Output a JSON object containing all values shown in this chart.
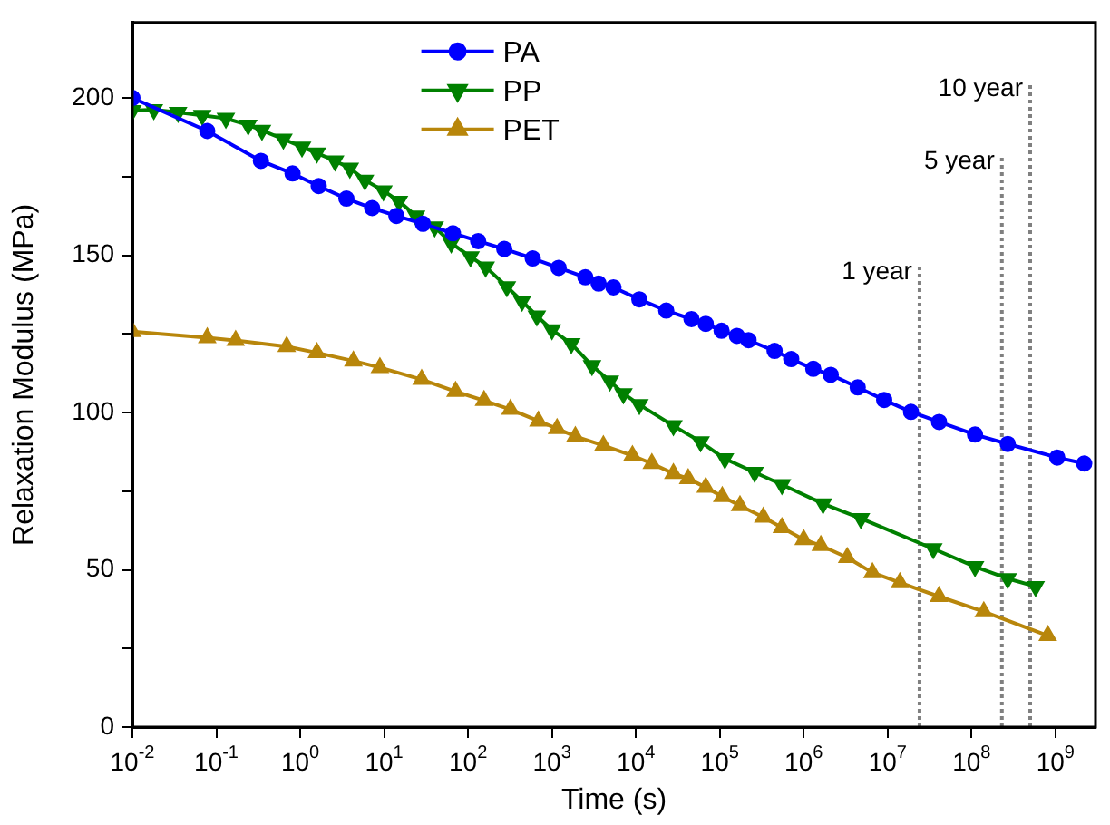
{
  "chart_data": {
    "type": "line",
    "xlabel": "Time (s)",
    "ylabel": "Relaxation Modulus (MPa)",
    "log": "x",
    "legend": "top",
    "line_style": "solid",
    "xlim": [
      0.01,
      3000000000.0
    ],
    "xticks": [
      {
        "value": 0.01,
        "label": "10$^{-2}$"
      },
      {
        "value": 0.1,
        "label": "10$^{-1}$"
      },
      {
        "value": 1,
        "label": "10$^{0}$"
      },
      {
        "value": 10,
        "label": "10$^{1}$"
      },
      {
        "value": 100,
        "label": "10$^{2}$"
      },
      {
        "value": 1000,
        "label": "10$^{3}$"
      },
      {
        "value": 10000,
        "label": "10$^{4}$"
      },
      {
        "value": 100000,
        "label": "10$^{5}$"
      },
      {
        "value": 1000000,
        "label": "10$^{6}$"
      },
      {
        "value": 10000000,
        "label": "10$^{7}$"
      },
      {
        "value": 100000000,
        "label": "10$^{8}$"
      },
      {
        "value": 1000000000,
        "label": "10$^{9}$"
      }
    ],
    "ylim": [
      0,
      224
    ],
    "yticks": [
      0,
      {
        "value": 25,
        "label": null
      },
      50,
      {
        "value": 75,
        "label": null
      },
      100,
      {
        "value": 125,
        "label": null
      },
      150,
      {
        "value": 175,
        "label": null
      },
      200
    ],
    "series": [
      {
        "name": "PA",
        "color": "#0000ff",
        "marker": "circle",
        "x": [
          0.01,
          0.078,
          0.34,
          0.81,
          1.66,
          3.55,
          7.2,
          14,
          29,
          66,
          132,
          270,
          590,
          1200,
          2500,
          3600,
          5400,
          11000,
          23000,
          46000,
          68000,
          105000,
          160000,
          220000,
          450000,
          710000,
          1300000,
          2100000,
          4400000,
          9100000,
          19000000,
          41000000,
          110000000,
          270000000,
          1050000000,
          2200000000
        ],
        "values": [
          200,
          189.5,
          180,
          176,
          172,
          168,
          165,
          162.5,
          160,
          157,
          154.5,
          152,
          149,
          146,
          143,
          141,
          139.8,
          136,
          132.4,
          129.7,
          128.2,
          126,
          124.4,
          123,
          119.6,
          117,
          113.9,
          112,
          108,
          104,
          100.2,
          97,
          93,
          90,
          85.7,
          83.8
        ]
      },
      {
        "name": "PP",
        "color": "#008000",
        "marker": "triangle-down",
        "x": [
          0.01,
          0.018,
          0.035,
          0.068,
          0.13,
          0.24,
          0.35,
          0.63,
          1.05,
          1.58,
          2.6,
          3.9,
          5.9,
          9.8,
          15,
          24,
          40,
          63,
          107,
          162,
          290,
          440,
          660,
          1000,
          1700,
          3000,
          4900,
          7100,
          11000,
          28000,
          59000,
          115000,
          260000,
          550000,
          1700000,
          4800000,
          35000000,
          110000000,
          270000000,
          580000000
        ],
        "values": [
          196,
          196.3,
          195.4,
          194.5,
          193.5,
          191.4,
          189.7,
          186.9,
          184.4,
          182.5,
          180,
          177.7,
          173.9,
          170.5,
          167.2,
          162.5,
          159,
          153.9,
          149.5,
          146.3,
          140,
          135.4,
          130.7,
          126.3,
          121.9,
          114.9,
          110,
          106,
          102.5,
          95.8,
          90.7,
          85.3,
          81,
          77.1,
          71,
          66.3,
          56.7,
          51,
          47.2,
          44.7
        ]
      },
      {
        "name": "PET",
        "color": "#b8860b",
        "marker": "triangle",
        "x": [
          0.01,
          0.078,
          0.17,
          0.69,
          1.58,
          4.3,
          8.9,
          28,
          71,
          155,
          320,
          690,
          1150,
          1900,
          4100,
          9100,
          15500,
          28000,
          42000,
          68000,
          107000,
          174000,
          330000,
          550000,
          1000000,
          1600000,
          3300000,
          6600000,
          14000000,
          41000000,
          140000000,
          810000000
        ],
        "values": [
          125.7,
          123.8,
          122.9,
          121,
          119,
          116.4,
          114.3,
          110.5,
          106.7,
          103.8,
          101,
          97.3,
          94.9,
          92.4,
          89.5,
          86.3,
          83.8,
          80.6,
          79,
          76.2,
          73.3,
          70.4,
          66.7,
          63.4,
          59.6,
          57.7,
          53.9,
          49.1,
          45.9,
          41.5,
          36.7,
          29.1
        ]
      }
    ],
    "ref_lines": [
      {
        "axis": "x",
        "value": 24000000,
        "color": "#808080",
        "line_style": "dotted"
      },
      {
        "axis": "x",
        "value": 230000000,
        "color": "#808080",
        "line_style": "dotted"
      },
      {
        "axis": "x",
        "value": 500000000,
        "color": "#808080",
        "line_style": "dotted"
      }
    ],
    "annotations": [
      {
        "text": "1 year",
        "x": 24000000,
        "y": 147
      },
      {
        "text": "5 year",
        "x": 230000000,
        "y": 182
      },
      {
        "text": "10 year",
        "x": 500000000,
        "y": 205
      }
    ]
  }
}
